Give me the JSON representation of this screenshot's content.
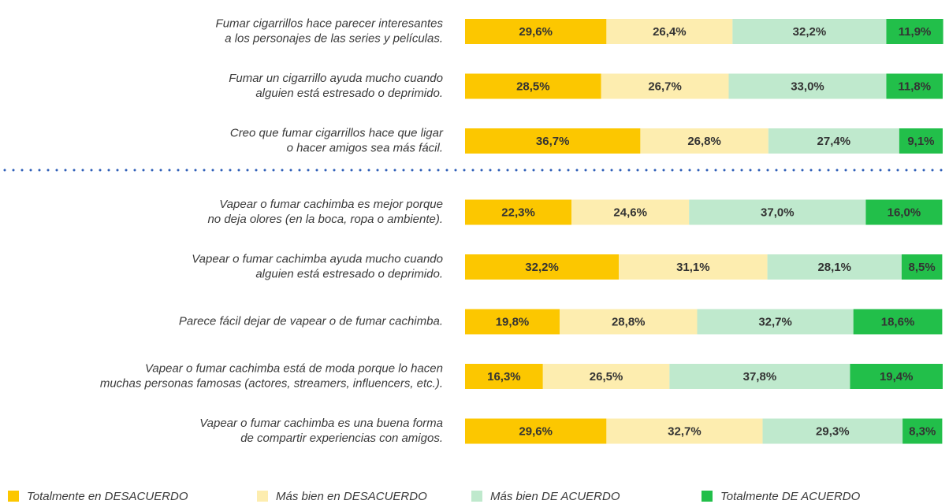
{
  "chart_data": {
    "type": "stacked-bar-horizontal",
    "categories": [
      [
        "Fumar cigarrillos hace parecer interesantes",
        "a los personajes de las series y películas."
      ],
      [
        "Fumar un cigarrillo ayuda mucho cuando",
        "alguien está estresado o deprimido."
      ],
      [
        "Creo que fumar cigarrillos hace que ligar",
        "o hacer amigos sea más fácil."
      ],
      [
        "Vapear o fumar cachimba es mejor porque",
        "no deja olores (en la boca, ropa o ambiente)."
      ],
      [
        "Vapear o fumar cachimba ayuda mucho cuando",
        "alguien está estresado o deprimido."
      ],
      [
        "Parece fácil dejar de vapear o de fumar cachimba."
      ],
      [
        "Vapear o fumar cachimba está de moda porque lo hacen",
        "muchas personas famosas (actores, streamers, influencers, etc.)."
      ],
      [
        "Vapear o fumar cachimba es una buena forma",
        "de compartir experiencias con amigos."
      ]
    ],
    "xlim": [
      0,
      100
    ],
    "series": [
      {
        "name": "Totalmente en DESACUERDO",
        "color": "#fcc700",
        "values": [
          29.6,
          28.5,
          36.7,
          22.3,
          32.2,
          19.8,
          16.3,
          29.6
        ],
        "value_labels": [
          "29,6%",
          "28,5%",
          "36,7%",
          "22,3%",
          "32,2%",
          "19,8%",
          "16,3%",
          "29,6%"
        ]
      },
      {
        "name": "Más bien en DESACUERDO",
        "color": "#fdedaf",
        "values": [
          26.4,
          26.7,
          26.8,
          24.6,
          31.1,
          28.8,
          26.5,
          32.7
        ],
        "value_labels": [
          "26,4%",
          "26,7%",
          "26,8%",
          "24,6%",
          "31,1%",
          "28,8%",
          "26,5%",
          "32,7%"
        ]
      },
      {
        "name": "Más bien DE ACUERDO",
        "color": "#bfe9cd",
        "values": [
          32.2,
          33.0,
          27.4,
          37.0,
          28.1,
          32.7,
          37.8,
          29.3
        ],
        "value_labels": [
          "32,2%",
          "33,0%",
          "27,4%",
          "37,0%",
          "28,1%",
          "32,7%",
          "37,8%",
          "29,3%"
        ]
      },
      {
        "name": "Totalmente DE ACUERDO",
        "color": "#22bf4a",
        "values": [
          11.9,
          11.8,
          9.1,
          16.0,
          8.5,
          18.6,
          19.4,
          8.3
        ],
        "value_labels": [
          "11,9%",
          "11,8%",
          "9,1%",
          "16,0%",
          "8,5%",
          "18,6%",
          "19,4%",
          "8,3%"
        ]
      }
    ],
    "legend": "bottom"
  }
}
